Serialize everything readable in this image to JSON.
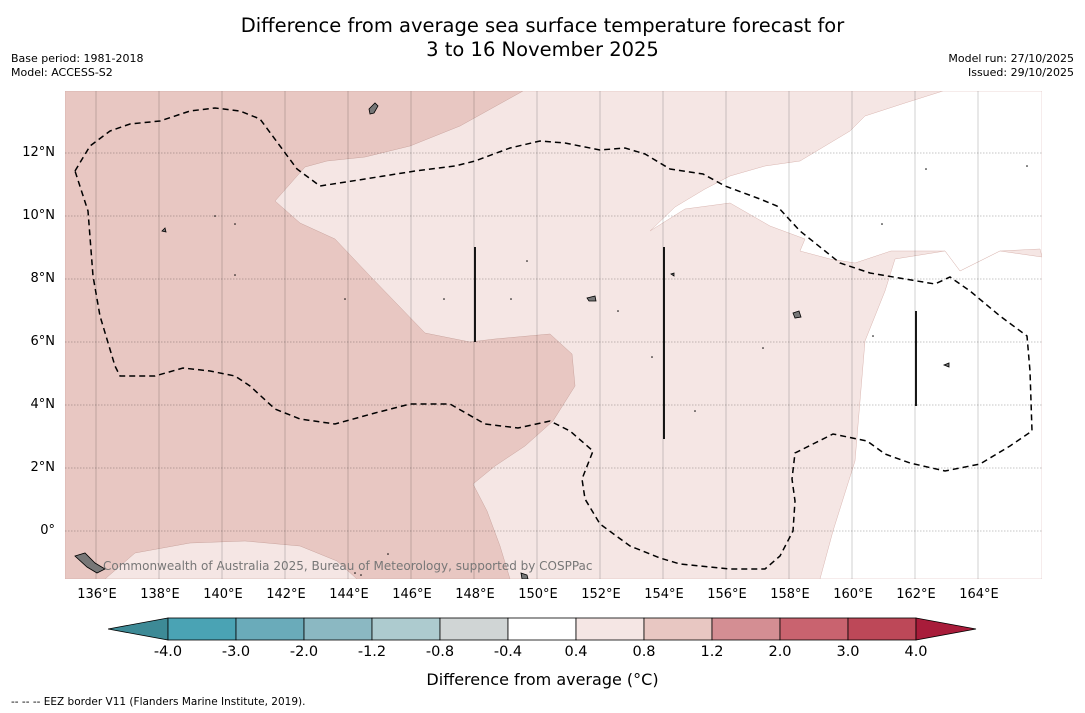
{
  "title": {
    "line1": "Difference from average sea surface temperature forecast for",
    "line2": "3 to 16 November 2025"
  },
  "meta": {
    "base_period": "Base period: 1981-2018",
    "model": "Model: ACCESS-S2",
    "model_run": "Model run: 27/10/2025",
    "issued": "Issued: 29/10/2025"
  },
  "map": {
    "lat_labels": [
      "12°N",
      "10°N",
      "8°N",
      "6°N",
      "4°N",
      "2°N",
      "0°"
    ],
    "lon_labels": [
      "136°E",
      "138°E",
      "140°E",
      "142°E",
      "144°E",
      "146°E",
      "148°E",
      "150°E",
      "152°E",
      "154°E",
      "156°E",
      "158°E",
      "160°E",
      "162°E",
      "164°E"
    ],
    "copyright": "Commonwealth of Australia 2025, Bureau of Meteorology, supported by COSPPac",
    "extent": {
      "lon_min": 135,
      "lon_max": 166,
      "lat_min": -1.5,
      "lat_max": 14
    }
  },
  "colorbar": {
    "tick_labels": [
      "-4.0",
      "-3.0",
      "-2.0",
      "-1.2",
      "-0.8",
      "-0.4",
      "0.4",
      "0.8",
      "1.2",
      "2.0",
      "3.0",
      "4.0"
    ],
    "colors": [
      "#3d8a96",
      "#4aa3b4",
      "#6aabba",
      "#8bb8c2",
      "#adcbcf",
      "#d0d5d5",
      "#ffffff",
      "#f5e6e4",
      "#e8c7c2",
      "#d48e93",
      "#c9636f",
      "#bd4858",
      "#a81c3a"
    ],
    "label": "Difference from average (°C)"
  },
  "footer": {
    "eez_note": "--  --  -- EEZ border V11 (Flanders Marine Institute, 2019)."
  }
}
